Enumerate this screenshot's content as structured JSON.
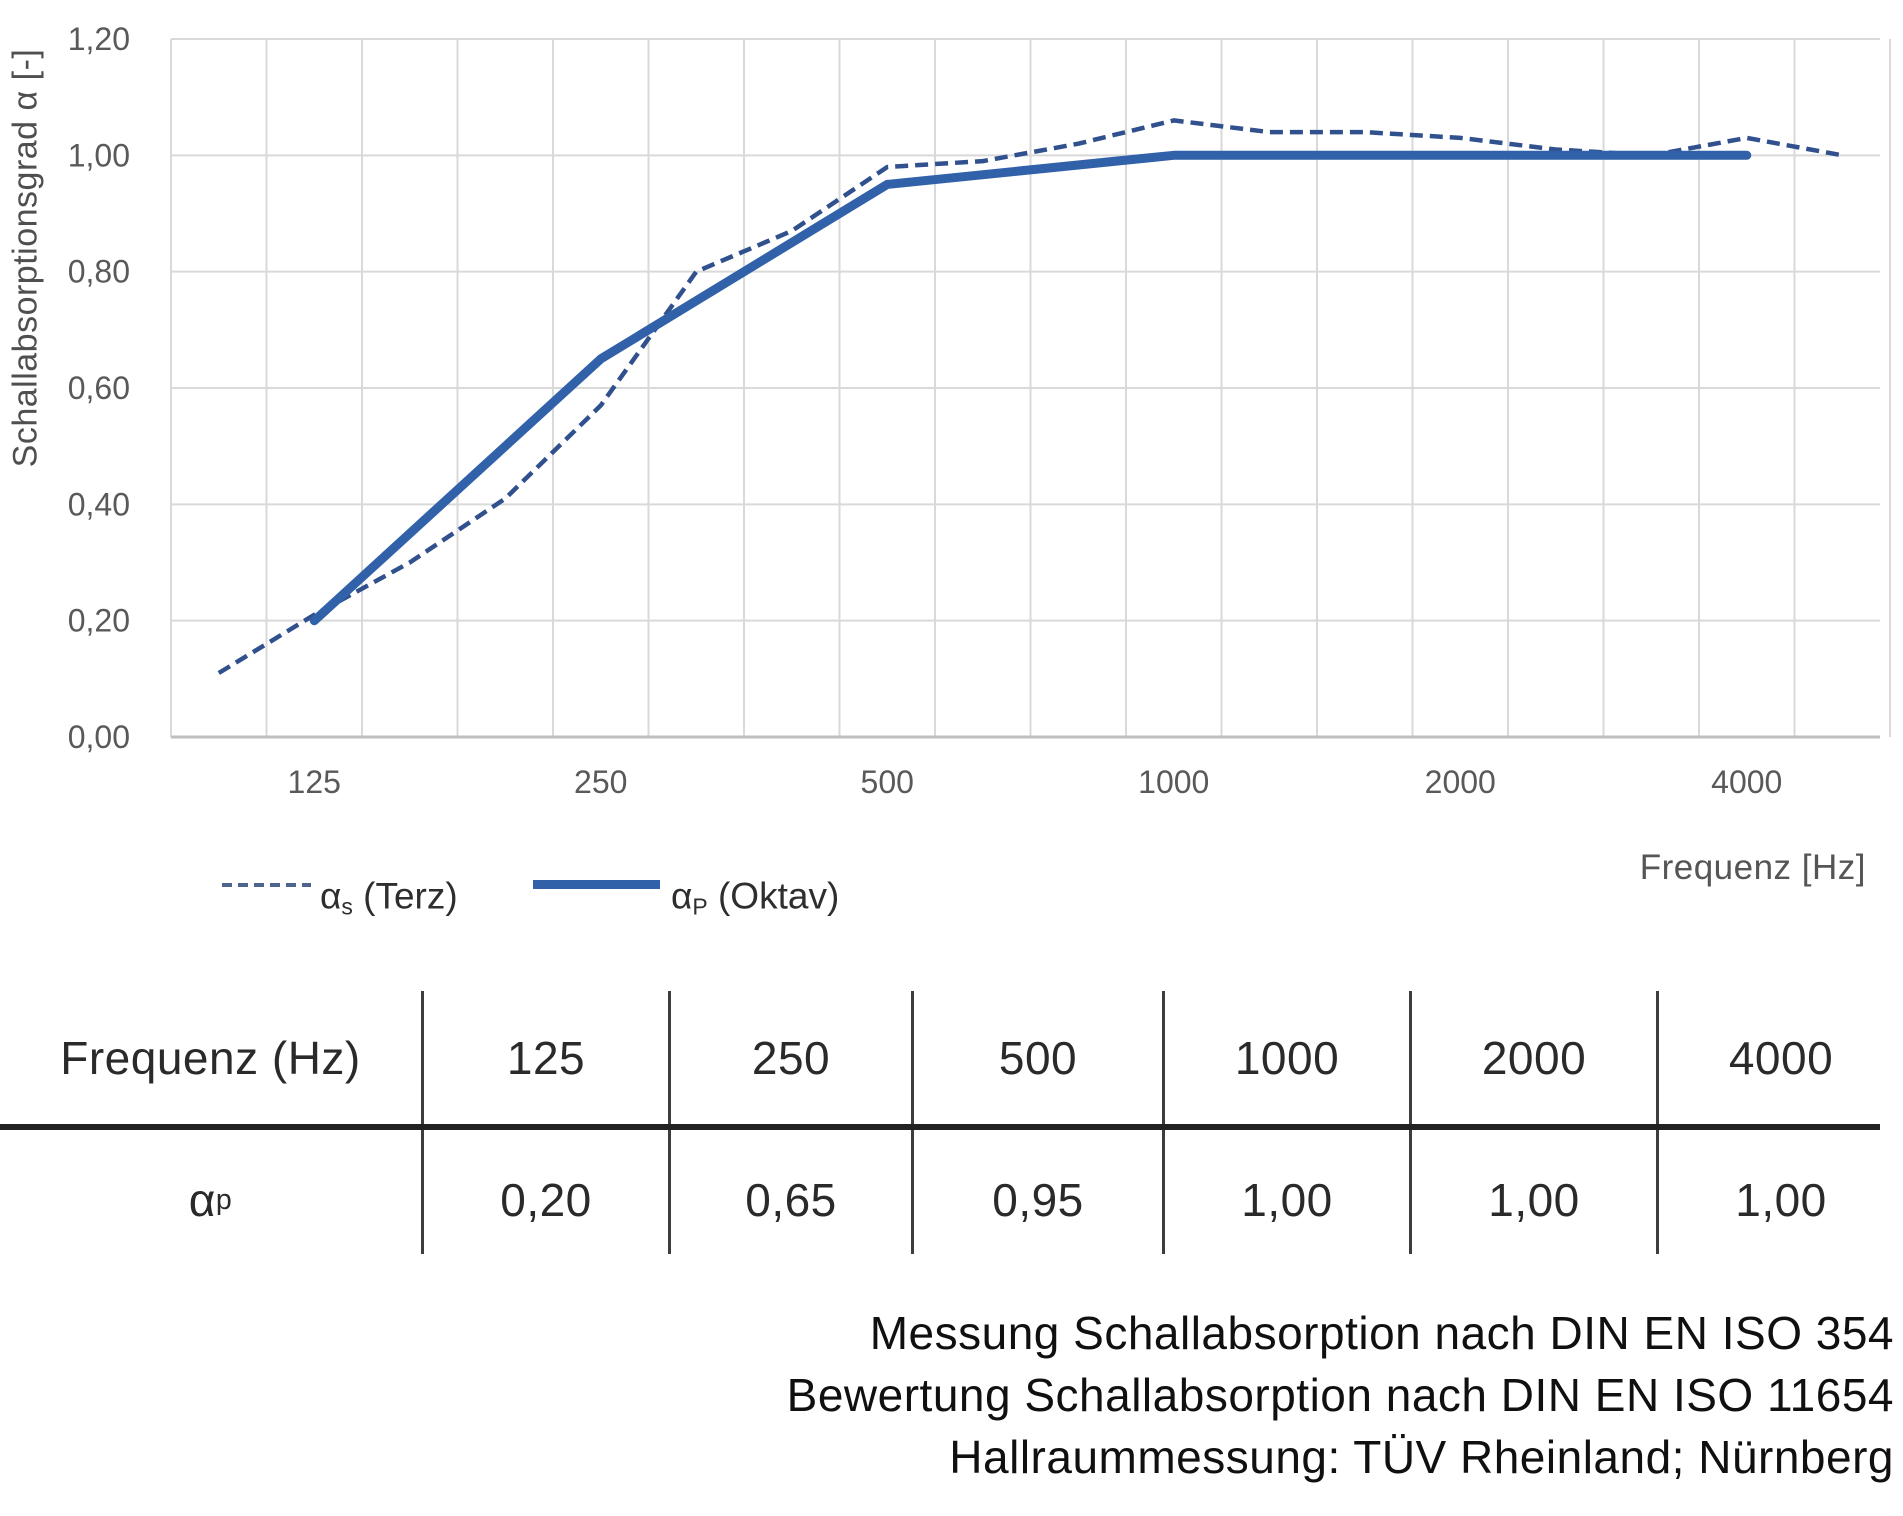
{
  "chart_data": {
    "type": "line",
    "title": "",
    "xlabel": "Frequenz [Hz]",
    "ylabel": "Schallabsorptionsgrad α [-]",
    "grid": true,
    "ylim": [
      0,
      1.2
    ],
    "ytick_labels": [
      "0,00",
      "0,20",
      "0,40",
      "0,60",
      "0,80",
      "1,00",
      "1,20"
    ],
    "x_categories": [
      100,
      125,
      160,
      200,
      250,
      315,
      400,
      500,
      630,
      800,
      1000,
      1250,
      1600,
      2000,
      2500,
      3150,
      4000,
      5000
    ],
    "xticks": [
      {
        "label": "125",
        "cat": 1
      },
      {
        "label": "250",
        "cat": 4
      },
      {
        "label": "500",
        "cat": 7
      },
      {
        "label": "1000",
        "cat": 10
      },
      {
        "label": "2000",
        "cat": 13
      },
      {
        "label": "4000",
        "cat": 16
      }
    ],
    "series": [
      {
        "name": "αs (Terz)",
        "style": "dashed",
        "color": "#31508E",
        "cat_idx": [
          0,
          1,
          2,
          3,
          4,
          5,
          6,
          7,
          8,
          9,
          10,
          11,
          12,
          13,
          14,
          15,
          16,
          17
        ],
        "values": [
          0.11,
          0.21,
          0.3,
          0.41,
          0.57,
          0.8,
          0.87,
          0.98,
          0.99,
          1.02,
          1.06,
          1.04,
          1.04,
          1.03,
          1.01,
          1.0,
          1.03,
          1.0
        ]
      },
      {
        "name": "αP (Oktav)",
        "style": "solid",
        "color": "#3161A9",
        "cat_idx": [
          1,
          4,
          7,
          10,
          13,
          16
        ],
        "values": [
          0.2,
          0.65,
          0.95,
          1.0,
          1.0,
          1.0
        ]
      }
    ],
    "grid_color": "#D9D9D9",
    "axis_line_color": "#BFBFBF",
    "tick_text_color": "#595959",
    "legend_position": "bottom-left"
  },
  "legend": {
    "terz": {
      "sym": "α",
      "sub": "s",
      "rest": " (Terz)"
    },
    "oktav": {
      "sym": "α",
      "sub": "P",
      "rest": " (Oktav)"
    }
  },
  "table": {
    "header": [
      "Frequenz (Hz)",
      "125",
      "250",
      "500",
      "1000",
      "2000",
      "4000"
    ],
    "row_label": {
      "sym": "α",
      "sub": "p"
    },
    "values": [
      "0,20",
      "0,65",
      "0,95",
      "1,00",
      "1,00",
      "1,00"
    ]
  },
  "footer": {
    "lines": [
      "Messung Schallabsorption nach DIN EN ISO 354",
      "Bewertung Schallabsorption nach DIN EN ISO 11654",
      "Hallraummessung: TÜV Rheinland; Nürnberg"
    ]
  }
}
